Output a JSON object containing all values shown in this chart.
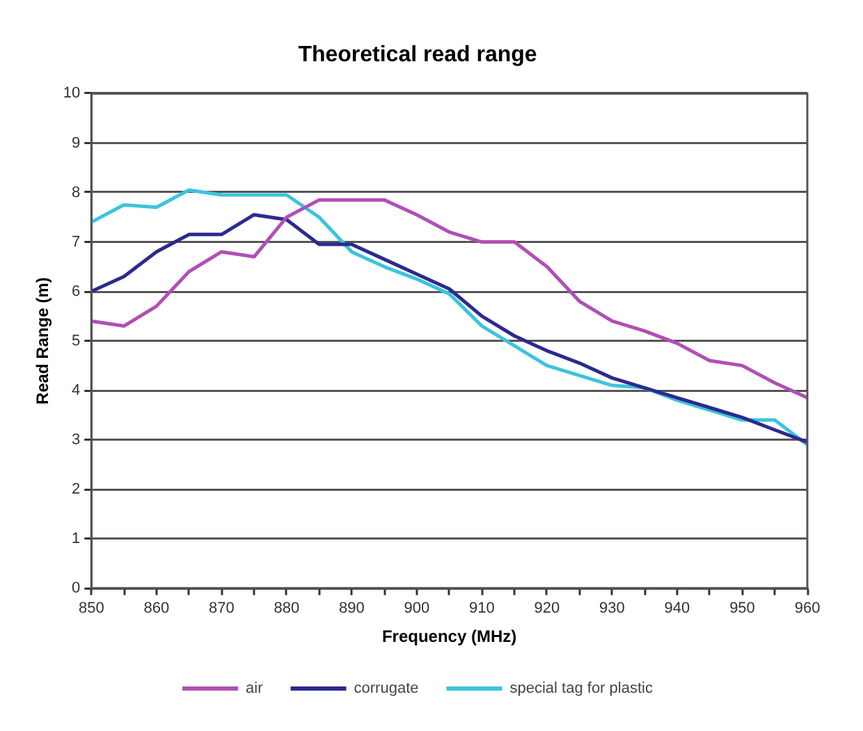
{
  "chart_data": {
    "type": "line",
    "title": "Theoretical read range",
    "xlabel": "Frequency (MHz)",
    "ylabel": "Read Range (m)",
    "x": [
      850,
      855,
      860,
      865,
      870,
      875,
      880,
      885,
      890,
      895,
      900,
      905,
      910,
      915,
      920,
      925,
      930,
      935,
      940,
      945,
      950,
      955,
      960
    ],
    "series": [
      {
        "name": "air",
        "color": "#b04fb5",
        "values": [
          5.4,
          5.3,
          5.7,
          6.4,
          6.8,
          6.7,
          7.5,
          7.85,
          7.85,
          7.85,
          7.55,
          7.2,
          7.0,
          7.0,
          6.5,
          5.8,
          5.4,
          5.2,
          4.95,
          4.6,
          4.5,
          4.15,
          3.85
        ]
      },
      {
        "name": "corrugate",
        "color": "#2b2a8f",
        "values": [
          6.0,
          6.3,
          6.8,
          7.15,
          7.15,
          7.55,
          7.45,
          6.95,
          6.95,
          6.65,
          6.35,
          6.05,
          5.5,
          5.1,
          4.8,
          4.55,
          4.25,
          4.05,
          3.85,
          3.65,
          3.45,
          3.2,
          2.95
        ]
      },
      {
        "name": "special tag for plastic",
        "color": "#3cc4dc",
        "values": [
          7.4,
          7.75,
          7.7,
          8.05,
          7.95,
          7.95,
          7.95,
          7.5,
          6.8,
          6.5,
          6.25,
          5.95,
          5.3,
          4.9,
          4.5,
          4.3,
          4.1,
          4.05,
          3.8,
          3.6,
          3.4,
          3.4,
          2.9
        ]
      }
    ],
    "xlim": [
      850,
      960
    ],
    "xticks": [
      850,
      {
        "value": 855,
        "label": null
      },
      860,
      {
        "value": 865,
        "label": null
      },
      870,
      {
        "value": 875,
        "label": null
      },
      880,
      {
        "value": 885,
        "label": null
      },
      890,
      {
        "value": 895,
        "label": null
      },
      900,
      {
        "value": 905,
        "label": null
      },
      910,
      {
        "value": 915,
        "label": null
      },
      920,
      {
        "value": 925,
        "label": null
      },
      930,
      {
        "value": 935,
        "label": null
      },
      940,
      {
        "value": 945,
        "label": null
      },
      950,
      {
        "value": 955,
        "label": null
      },
      960
    ],
    "ylim": [
      0,
      10
    ],
    "yticks": [
      0,
      1,
      2,
      3,
      4,
      5,
      6,
      7,
      8,
      9,
      10
    ],
    "grid": "y",
    "legend": "bottom",
    "marker": "none",
    "line_style": "solid"
  }
}
